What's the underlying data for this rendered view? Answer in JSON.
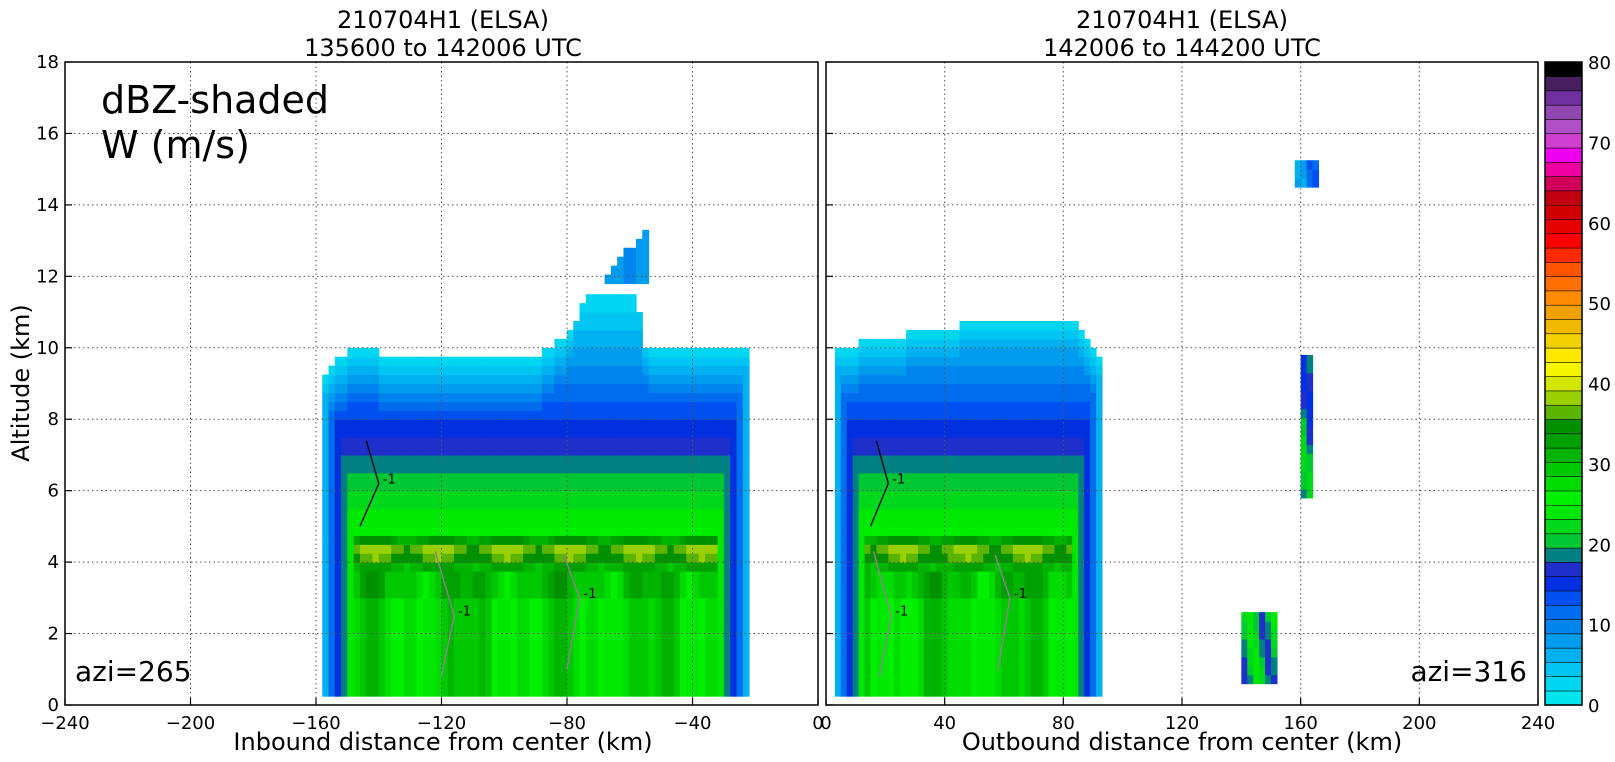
{
  "chart_data": [
    {
      "type": "heatmap",
      "title": "210704H1 (ELSA)",
      "subtitle": "135600 to 142006 UTC",
      "xlabel": "Inbound distance from center (km)",
      "ylabel": "Altitude (km)",
      "xlim": [
        -240,
        0
      ],
      "ylim": [
        0,
        18
      ],
      "xticks": [
        "−240",
        "−200",
        "−160",
        "−120",
        "−80",
        "−40",
        "0"
      ],
      "yticks": [
        "0",
        "2",
        "4",
        "6",
        "8",
        "10",
        "12",
        "14",
        "16",
        "18"
      ],
      "grid": true,
      "annotations": [
        "dBZ-shaded",
        "W (m/s)",
        "azi=265"
      ],
      "contour_label": "-1",
      "echo_x_range": [
        -158,
        -22
      ],
      "echo_top_profile": [
        [
          -158,
          9.1
        ],
        [
          -150,
          9.8
        ],
        [
          -130,
          9.7
        ],
        [
          -110,
          9.5
        ],
        [
          -90,
          9.6
        ],
        [
          -80,
          10.3
        ],
        [
          -74,
          11.2
        ],
        [
          -68,
          11.8
        ],
        [
          -62,
          12.2
        ],
        [
          -58,
          11.5
        ],
        [
          -55,
          10.0
        ],
        [
          -40,
          9.8
        ],
        [
          -22,
          9.8
        ]
      ],
      "melting_layer_km": [
        3.8,
        4.8
      ],
      "melting_layer_peak_dbz": 42,
      "anvil_x_range": [
        -70,
        -55
      ],
      "anvil_y_range": [
        11.8,
        13.3
      ]
    },
    {
      "type": "heatmap",
      "title": "210704H1 (ELSA)",
      "subtitle": "142006 to 144200 UTC",
      "xlabel": "Outbound distance from center (km)",
      "ylabel": "",
      "xlim": [
        0,
        240
      ],
      "ylim": [
        0,
        18
      ],
      "xticks": [
        "0",
        "40",
        "80",
        "120",
        "160",
        "200",
        "240"
      ],
      "grid": true,
      "annotations": [
        "azi=316"
      ],
      "contour_label": "-1",
      "echo_x_range": [
        3,
        93
      ],
      "echo_top_profile": [
        [
          3,
          9.8
        ],
        [
          15,
          10.1
        ],
        [
          30,
          10.3
        ],
        [
          45,
          10.5
        ],
        [
          60,
          10.6
        ],
        [
          75,
          10.7
        ],
        [
          85,
          10.5
        ],
        [
          93,
          9.5
        ]
      ],
      "melting_layer_km": [
        3.8,
        4.8
      ],
      "melting_layer_peak_dbz": 42,
      "isolated_cells": [
        {
          "x": [
            158,
            165
          ],
          "y": [
            14.5,
            15.2
          ],
          "dbz": 10
        },
        {
          "x": [
            140,
            152
          ],
          "y": [
            0.6,
            2.5
          ],
          "dbz": 22
        },
        {
          "x": [
            160,
            164
          ],
          "y": [
            5.8,
            9.7
          ],
          "dbz": 20
        }
      ]
    },
    {
      "type": "colorbar",
      "range": [
        0,
        80
      ],
      "step": 2,
      "tick_labels": [
        "0",
        "10",
        "20",
        "30",
        "40",
        "50",
        "60",
        "70",
        "80"
      ],
      "colors": [
        "#00e5ee",
        "#00d6f0",
        "#00c4f2",
        "#00b0f0",
        "#009cee",
        "#0084ee",
        "#006cee",
        "#0050f0",
        "#0030e0",
        "#1e2fcc",
        "#008080",
        "#00c832",
        "#00d81c",
        "#00e800",
        "#00f000",
        "#00dc00",
        "#00c800",
        "#00b400",
        "#00a000",
        "#009000",
        "#5ab400",
        "#9ad000",
        "#d2e600",
        "#f5f500",
        "#ffe800",
        "#f0d000",
        "#f0b800",
        "#f0a000",
        "#ff8c00",
        "#ff7000",
        "#ff5500",
        "#ff2a00",
        "#ff0000",
        "#e60000",
        "#d00000",
        "#c00010",
        "#d0005a",
        "#ee00a0",
        "#f000f0",
        "#d040d0",
        "#b050c8",
        "#9048b0",
        "#7030a0",
        "#482060",
        "#000000"
      ]
    }
  ]
}
